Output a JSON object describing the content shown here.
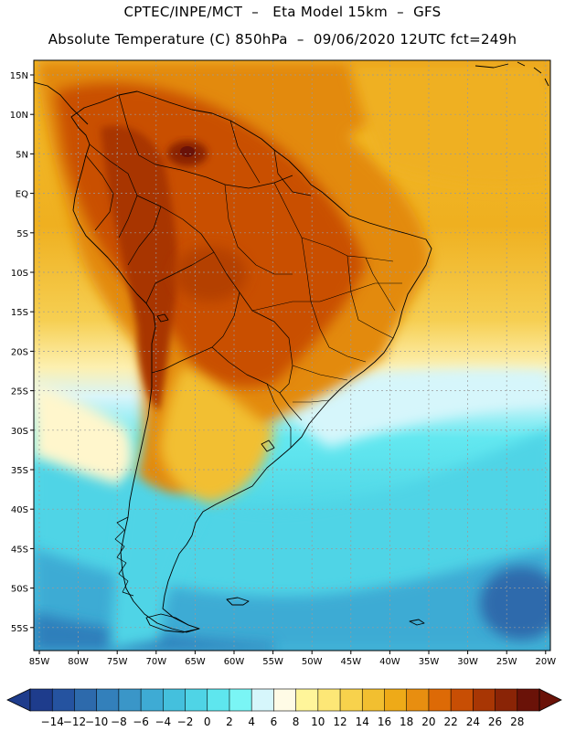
{
  "header": {
    "line1": "CPTEC/INPE/MCT  –   Eta Model 15km  –  GFS",
    "line2": "Absolute Temperature (C) 850hPa  –  09/06/2020 12UTC fct=249h"
  },
  "map": {
    "lat_ticks": [
      "15N",
      "10N",
      "5N",
      "EQ",
      "5S",
      "10S",
      "15S",
      "20S",
      "25S",
      "30S",
      "35S",
      "40S",
      "45S",
      "50S",
      "55S"
    ],
    "lon_ticks": [
      "85W",
      "80W",
      "75W",
      "70W",
      "65W",
      "60W",
      "55W",
      "50W",
      "45W",
      "40W",
      "35W",
      "30W",
      "25W",
      "20W"
    ]
  },
  "colorbar": {
    "labels": [
      "-14",
      "-12",
      "-10",
      "-8",
      "-6",
      "-4",
      "-2",
      "0",
      "2",
      "4",
      "6",
      "8",
      "10",
      "12",
      "14",
      "16",
      "18",
      "20",
      "22",
      "24",
      "26",
      "28"
    ],
    "colors": [
      "#1e3c8c",
      "#2553a0",
      "#2d6aac",
      "#3380bb",
      "#3a96c8",
      "#3eabd4",
      "#44c0dd",
      "#4fd4e6",
      "#5ee6ee",
      "#7af5f5",
      "#d6f6fb",
      "#fffbe6",
      "#fff59a",
      "#fde776",
      "#f8d24c",
      "#f2bf30",
      "#eeaa18",
      "#e88e10",
      "#dd6a06",
      "#c84e04",
      "#a83604",
      "#8a2406",
      "#6a1208"
    ],
    "under_color": "#1e3c8c",
    "over_color": "#6a1208"
  }
}
